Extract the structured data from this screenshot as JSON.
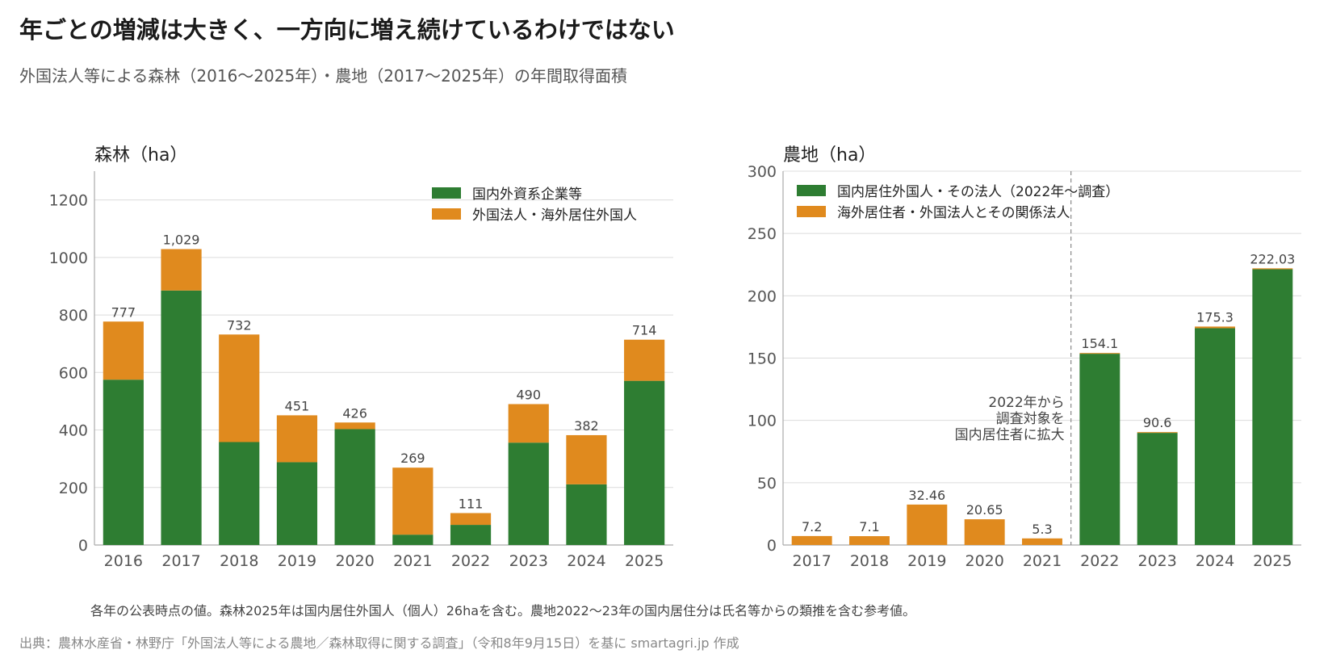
{
  "header": {
    "title": "年ごとの増減は大きく、一方向に増え続けているわけではない",
    "subtitle": "外国法人等による森林（2016〜2025年）・農地（2017〜2025年）の年間取得面積"
  },
  "colors": {
    "green": "#2e7d32",
    "orange": "#e08a1e",
    "grid": "#dcdcdc",
    "axis": "#aaaaaa",
    "tick_text": "#555555",
    "label_text": "#444444"
  },
  "chart_data": [
    {
      "type": "bar",
      "stacked": true,
      "title": "森林（ha）",
      "categories": [
        "2016",
        "2017",
        "2018",
        "2019",
        "2020",
        "2021",
        "2022",
        "2023",
        "2024",
        "2025"
      ],
      "series": [
        {
          "name": "国内外資系企業等",
          "color": "#2e7d32",
          "values": [
            575,
            885,
            358,
            288,
            403,
            36,
            70,
            356,
            211,
            571
          ]
        },
        {
          "name": "外国法人・海外居住外国人",
          "color": "#e08a1e",
          "values": [
            202,
            144,
            374,
            163,
            23,
            233,
            41,
            134,
            171,
            143
          ]
        }
      ],
      "totals": [
        "777",
        "1,029",
        "732",
        "451",
        "426",
        "269",
        "111",
        "490",
        "382",
        "714"
      ],
      "ylim": [
        0,
        1300
      ],
      "yticks": [
        0,
        200,
        400,
        600,
        800,
        1000,
        1200
      ],
      "grid": true,
      "legend": "top-right"
    },
    {
      "type": "bar",
      "stacked": true,
      "title": "農地（ha）",
      "categories": [
        "2017",
        "2018",
        "2019",
        "2020",
        "2021",
        "2022",
        "2023",
        "2024",
        "2025"
      ],
      "series": [
        {
          "name": "国内居住外国人・その法人（2022年〜調査）",
          "color": "#2e7d32",
          "values": [
            0,
            0,
            0,
            0,
            0,
            153.5,
            90.0,
            174.0,
            221.3
          ]
        },
        {
          "name": "海外居住者・外国法人とその関係法人",
          "color": "#e08a1e",
          "values": [
            7.2,
            7.1,
            32.46,
            20.65,
            5.3,
            0.6,
            0.6,
            1.3,
            0.73
          ]
        }
      ],
      "totals": [
        "7.2",
        "7.1",
        "32.46",
        "20.65",
        "5.3",
        "154.1",
        "90.6",
        "175.3",
        "222.03"
      ],
      "ylim": [
        0,
        300
      ],
      "yticks": [
        0,
        50,
        100,
        150,
        200,
        250,
        300
      ],
      "grid": true,
      "legend": "top-left",
      "annotation": {
        "lines": [
          "2022年から",
          "調査対象を",
          "国内居住者に拡大"
        ],
        "divider_between": [
          "2021",
          "2022"
        ]
      }
    }
  ],
  "footnote": "各年の公表時点の値。森林2025年は国内居住外国人（個人）26haを含む。農地2022〜23年の国内居住分は氏名等からの類推を含む参考値。",
  "source": "出典：農林水産省・林野庁「外国法人等による農地／森林取得に関する調査」（令和8年9月15日）を基に smartagri.jp 作成"
}
